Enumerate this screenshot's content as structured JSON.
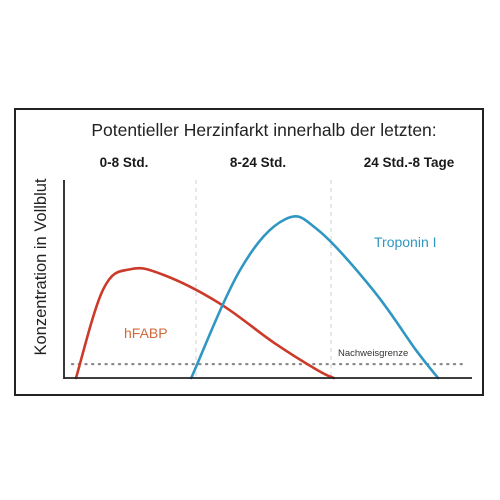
{
  "chart_data": {
    "type": "line",
    "title": "Potentieller Herzinfarkt innerhalb der letzten:",
    "periods": [
      "0-8 Std.",
      "8-24 Std.",
      "24 Std.-8 Tage"
    ],
    "ylabel": "Konzentration in Vollblut",
    "xlabel": "",
    "ylim": [
      0,
      100
    ],
    "threshold_label": "Nachweisgrenze",
    "threshold_value": 7,
    "series": [
      {
        "name": "hFABP",
        "color": "#cc3a2a",
        "label_color": "#cf6a3c",
        "points": [
          [
            0,
            0
          ],
          [
            2.5,
            45
          ],
          [
            5,
            55
          ],
          [
            8,
            52
          ],
          [
            13,
            38
          ],
          [
            18,
            18
          ],
          [
            22,
            4
          ],
          [
            23.5,
            0
          ]
        ]
      },
      {
        "name": "Troponin I",
        "color": "#2f97c2",
        "label_color": "#2f97c2",
        "points": [
          [
            10.5,
            0
          ],
          [
            15,
            55
          ],
          [
            19,
            80
          ],
          [
            22,
            75
          ],
          [
            27,
            45
          ],
          [
            31,
            14
          ],
          [
            33,
            0
          ]
        ]
      }
    ],
    "colors": {
      "axis": "#222222",
      "grid": "#cfcfcf",
      "threshold": "#8a8a8a",
      "text": "#222222"
    }
  }
}
